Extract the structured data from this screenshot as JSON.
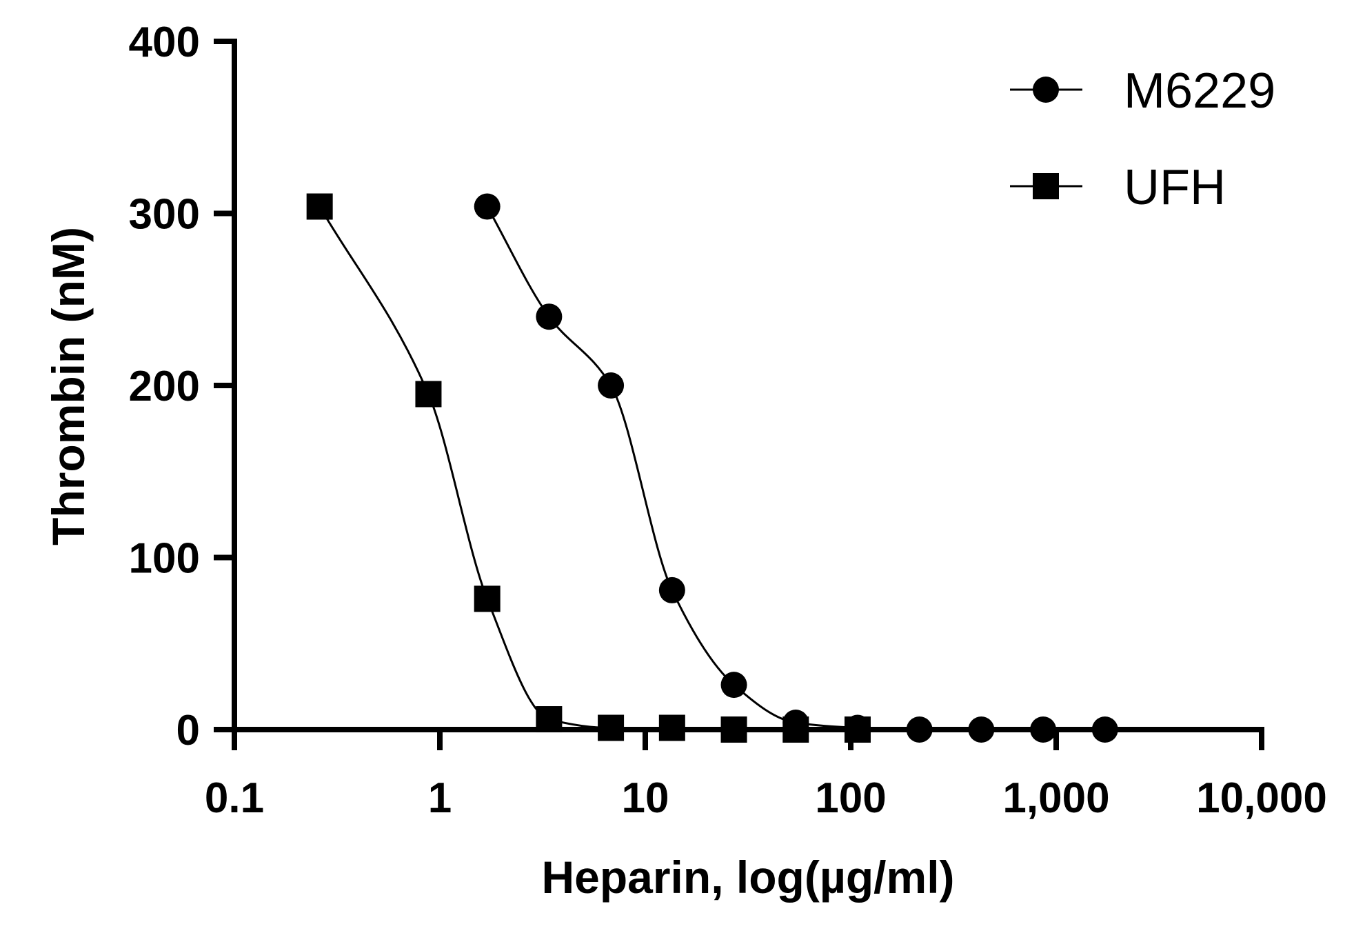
{
  "chart_data": {
    "type": "scatter",
    "xlabel": "Heparin, log(µg/ml)",
    "ylabel": "Thrombin (nM)",
    "x_scale": "log",
    "xlim": [
      0.1,
      10000
    ],
    "ylim": [
      0,
      400
    ],
    "x_ticks": [
      0.1,
      1,
      10,
      100,
      1000,
      10000
    ],
    "x_tick_labels": [
      "0.1",
      "1",
      "10",
      "100",
      "1,000",
      "10,000"
    ],
    "y_ticks": [
      0,
      100,
      200,
      300,
      400
    ],
    "y_tick_labels": [
      "0",
      "100",
      "200",
      "300",
      "400"
    ],
    "grid": false,
    "legend_position": "top-right",
    "series": [
      {
        "name": "M6229",
        "marker": "circle",
        "fit": "sigmoidal",
        "x": [
          1.7,
          3.4,
          6.8,
          13.5,
          27,
          54,
          108,
          216,
          432,
          864,
          1728
        ],
        "y": [
          304,
          240,
          200,
          81,
          26,
          4,
          1,
          0,
          0,
          0,
          0
        ]
      },
      {
        "name": "UFH",
        "marker": "square",
        "fit": "sigmoidal",
        "x": [
          0.26,
          0.88,
          1.7,
          3.4,
          6.8,
          13.5,
          27,
          54,
          108
        ],
        "y": [
          304,
          195,
          76,
          6,
          1,
          1,
          0,
          0,
          0
        ]
      }
    ]
  }
}
